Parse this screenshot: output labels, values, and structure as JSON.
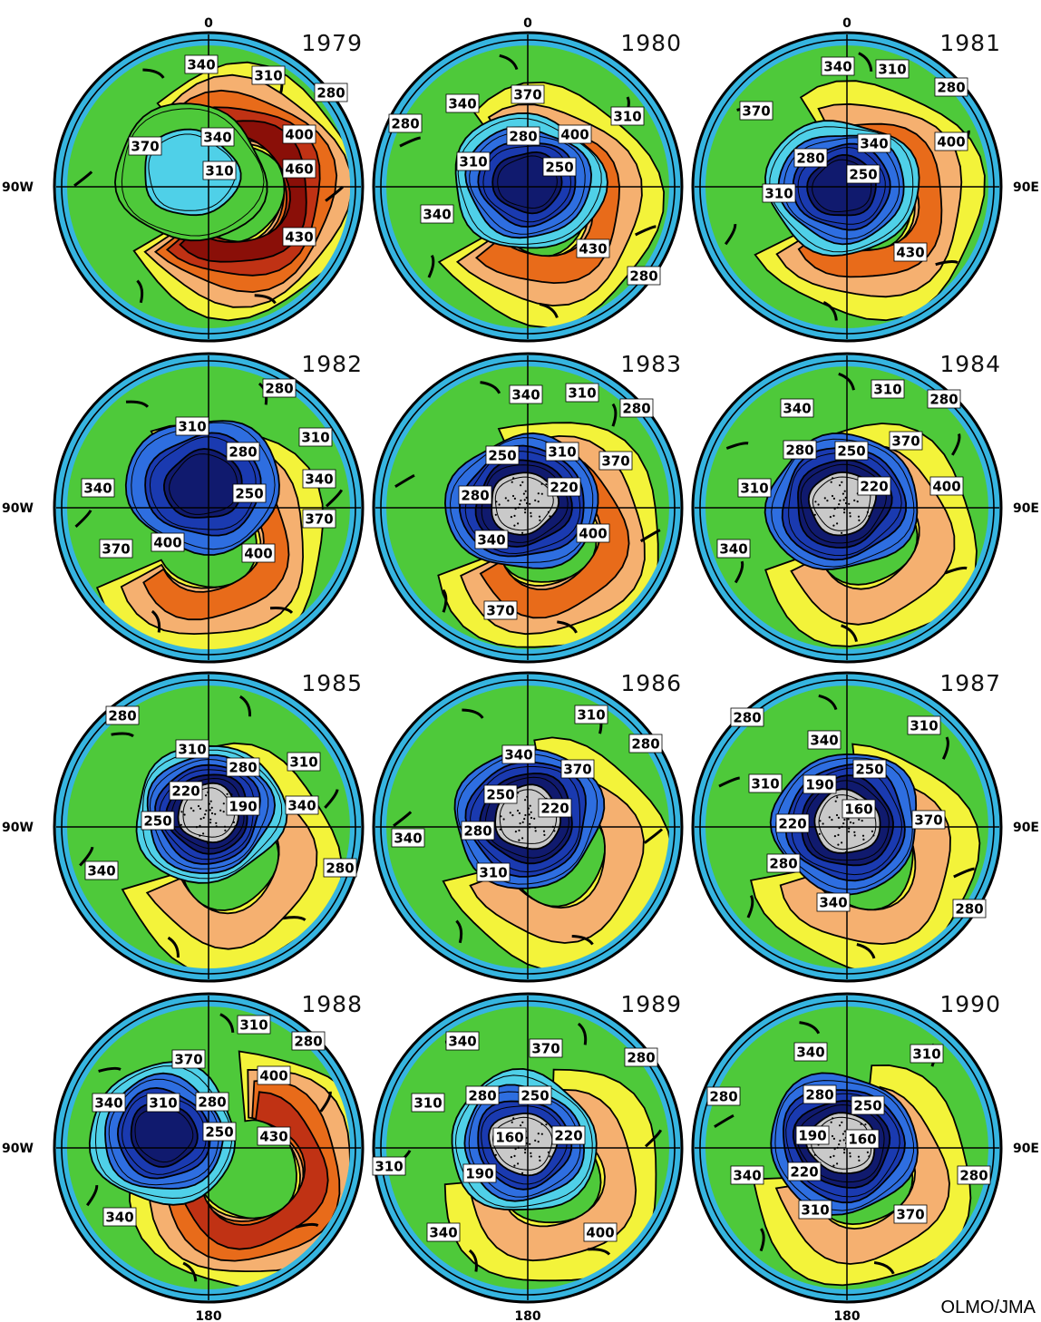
{
  "credit": "OLMO/JMA",
  "axis_labels": {
    "top": "0",
    "bottom": "180",
    "left": "90W",
    "right": "90E"
  },
  "palette": {
    "ocean_ring": "#36b5e0",
    "ring_edge": "#1b8fc0",
    "210": "#c9c9c9",
    "220": "#101a6e",
    "250": "#1a3ab0",
    "280": "#2e6ee0",
    "310": "#4fd0e8",
    "340": "#4ec93a",
    "370": "#f3f33a",
    "400": "#f5b070",
    "430": "#e86b1a",
    "460": "#c03214",
    "500": "#8a0f08"
  },
  "panels": [
    {
      "year": "1979",
      "center_level": 310,
      "labels": [
        "340",
        "310",
        "280",
        "370",
        "340",
        "400",
        "310",
        "460",
        "430"
      ]
    },
    {
      "year": "1980",
      "center_level": 250,
      "labels": [
        "370",
        "340",
        "310",
        "280",
        "280",
        "400",
        "310",
        "250",
        "340",
        "430",
        "280"
      ]
    },
    {
      "year": "1981",
      "center_level": 250,
      "labels": [
        "340",
        "310",
        "280",
        "370",
        "280",
        "340",
        "400",
        "310",
        "250",
        "430"
      ]
    },
    {
      "year": "1982",
      "center_level": 250,
      "labels": [
        "280",
        "310",
        "310",
        "280",
        "340",
        "340",
        "250",
        "370",
        "370",
        "400",
        "400"
      ]
    },
    {
      "year": "1983",
      "center_level": 210,
      "labels": [
        "340",
        "310",
        "280",
        "250",
        "310",
        "370",
        "280",
        "220",
        "400",
        "340",
        "370"
      ]
    },
    {
      "year": "1984",
      "center_level": 210,
      "labels": [
        "310",
        "280",
        "340",
        "370",
        "280",
        "250",
        "310",
        "220",
        "400",
        "340"
      ]
    },
    {
      "year": "1985",
      "center_level": 210,
      "labels": [
        "280",
        "310",
        "310",
        "280",
        "220",
        "190",
        "340",
        "250",
        "340",
        "280"
      ]
    },
    {
      "year": "1986",
      "center_level": 210,
      "labels": [
        "310",
        "280",
        "340",
        "370",
        "250",
        "220",
        "280",
        "340",
        "310"
      ]
    },
    {
      "year": "1987",
      "center_level": 210,
      "labels": [
        "280",
        "310",
        "340",
        "250",
        "310",
        "190",
        "160",
        "220",
        "370",
        "280",
        "340",
        "280"
      ]
    },
    {
      "year": "1988",
      "center_level": 250,
      "labels": [
        "310",
        "280",
        "370",
        "400",
        "310",
        "340",
        "280",
        "430",
        "250",
        "340"
      ]
    },
    {
      "year": "1989",
      "center_level": 210,
      "labels": [
        "340",
        "370",
        "280",
        "280",
        "250",
        "310",
        "160",
        "220",
        "310",
        "190",
        "340",
        "400"
      ]
    },
    {
      "year": "1990",
      "center_level": 210,
      "labels": [
        "340",
        "310",
        "280",
        "250",
        "280",
        "190",
        "160",
        "340",
        "220",
        "280",
        "310",
        "370"
      ]
    }
  ]
}
